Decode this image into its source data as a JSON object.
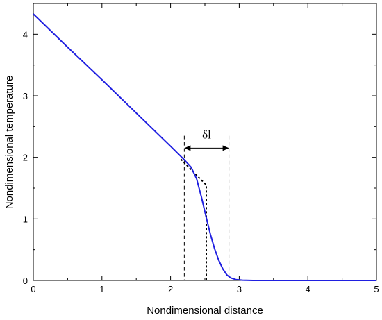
{
  "chart_data": {
    "type": "line",
    "xlabel": "Nondimensional distance",
    "ylabel": "Nondimensional temperature",
    "xlim": [
      0,
      5
    ],
    "ylim": [
      0,
      4.5
    ],
    "x_ticks": [
      "0",
      "1",
      "2",
      "3",
      "4",
      "5"
    ],
    "y_ticks": [
      "0",
      "1",
      "2",
      "3",
      "4"
    ],
    "grid": false,
    "series": [
      {
        "color": "#1f1fe0",
        "x": [
          0,
          0.5,
          1.0,
          1.5,
          2.0,
          2.2,
          2.3,
          2.38,
          2.45,
          2.52,
          2.58,
          2.64,
          2.7,
          2.76,
          2.82,
          2.88,
          2.95,
          3.05,
          3.2,
          3.5,
          4.0,
          4.5,
          5.0
        ],
        "y": [
          4.33,
          3.79,
          3.26,
          2.72,
          2.18,
          1.96,
          1.84,
          1.65,
          1.35,
          1.02,
          0.75,
          0.52,
          0.33,
          0.19,
          0.09,
          0.04,
          0.015,
          0.005,
          0.0,
          0.0,
          0.0,
          0.0,
          0.0
        ]
      }
    ],
    "tangent_line": {
      "x": [
        2.15,
        2.52,
        2.52
      ],
      "y": [
        1.97,
        1.55,
        0
      ]
    },
    "marker_lines_x": [
      2.2,
      2.85
    ],
    "annotation": {
      "text": "δl",
      "x_start": 2.2,
      "x_end": 2.85,
      "y": 2.15
    }
  }
}
